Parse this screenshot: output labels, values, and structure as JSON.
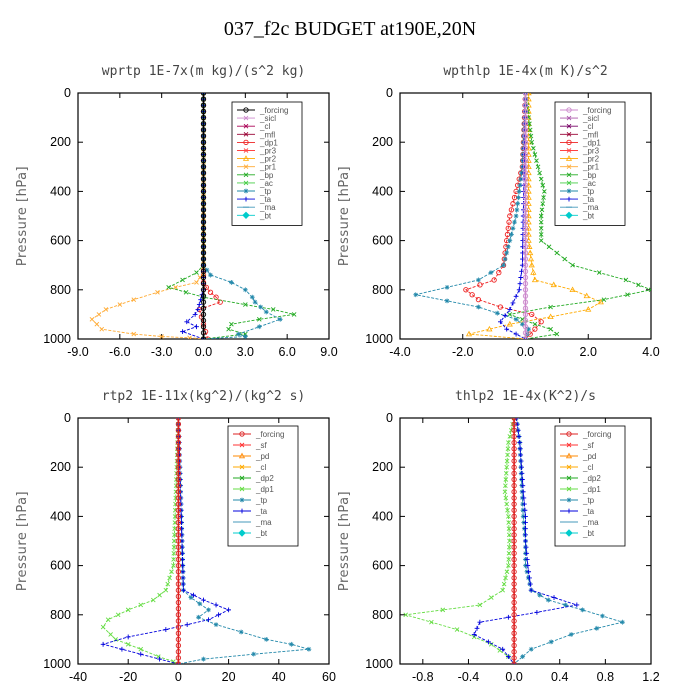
{
  "page_title": "037_f2c  BUDGET at190E,20N",
  "chart_data": [
    {
      "type": "line",
      "title": "wprtp  1E-7x(m kg)/(s^2 kg)",
      "ylabel": "Pressure [hPa]",
      "xlim": [
        -9,
        9
      ],
      "ylim": [
        0,
        1000
      ],
      "xticks": [
        "-9.0",
        "-6.0",
        "-3.0",
        "0.0",
        "3.0",
        "6.0",
        "9.0"
      ],
      "yticks": [
        "0",
        "200",
        "400",
        "600",
        "800",
        "1000"
      ],
      "series": [
        {
          "name": "_forcing",
          "color": "#000000",
          "marker": "circle",
          "x": [
            0,
            0,
            0,
            0,
            0,
            0,
            0,
            0,
            0,
            0,
            0
          ],
          "y": [
            0,
            100,
            200,
            300,
            400,
            500,
            600,
            700,
            800,
            900,
            1000
          ]
        },
        {
          "name": "_sicl",
          "color": "#cc88cc",
          "marker": "cross",
          "x": [],
          "y": []
        },
        {
          "name": "_cl",
          "color": "#aa0055",
          "marker": "cross",
          "x": [],
          "y": []
        },
        {
          "name": "_mfl",
          "color": "#990033",
          "marker": "cross",
          "x": [],
          "y": []
        },
        {
          "name": "_dp1",
          "color": "#ee2222",
          "marker": "circle",
          "x": [
            0,
            0,
            0,
            0,
            0.2,
            0.5,
            0.9,
            1.2,
            -0.3,
            0,
            0.3
          ],
          "y": [
            0,
            700,
            740,
            770,
            790,
            810,
            830,
            850,
            880,
            940,
            1000
          ]
        },
        {
          "name": "_pr3",
          "color": "#ff4444",
          "marker": "cross",
          "x": [],
          "y": []
        },
        {
          "name": "_pr2",
          "color": "#ffaa00",
          "marker": "triangle",
          "x": [],
          "y": []
        },
        {
          "name": "_pr1",
          "color": "#ffaa33",
          "marker": "cross",
          "x": [
            0,
            0,
            0,
            -0.5,
            -2,
            -3.3,
            -5,
            -7,
            -8,
            -7.3,
            -5,
            -3,
            -1,
            0
          ],
          "y": [
            0,
            660,
            730,
            770,
            790,
            810,
            840,
            880,
            920,
            960,
            980,
            990,
            995,
            1000
          ]
        },
        {
          "name": "_bp",
          "color": "#22aa22",
          "marker": "cross",
          "x": [
            0,
            0,
            -0.5,
            -1.5,
            -2.5,
            0,
            3,
            5,
            6.5,
            4,
            2,
            1.8,
            3,
            0
          ],
          "y": [
            0,
            700,
            730,
            760,
            790,
            830,
            860,
            880,
            900,
            920,
            940,
            960,
            980,
            1000
          ]
        },
        {
          "name": "_ac",
          "color": "#44cc44",
          "marker": "cross",
          "x": [],
          "y": []
        },
        {
          "name": "_tp",
          "color": "#2288aa",
          "marker": "star",
          "x": [
            0,
            0,
            0.5,
            2,
            3,
            3.5,
            3.7,
            4.5,
            5.5,
            4,
            2.5,
            3,
            0
          ],
          "y": [
            0,
            700,
            740,
            770,
            800,
            830,
            850,
            890,
            920,
            950,
            980,
            990,
            1000
          ]
        },
        {
          "name": "_ta",
          "color": "#0000dd",
          "marker": "plus",
          "x": [
            0,
            0,
            -0.2,
            -0.4,
            -0.6,
            -1.2,
            -0.5,
            -1.5,
            0
          ],
          "y": [
            0,
            800,
            840,
            880,
            900,
            930,
            950,
            970,
            1000
          ]
        },
        {
          "name": "_ma",
          "color": "#4499bb",
          "marker": "dash",
          "x": [],
          "y": []
        },
        {
          "name": "_bt",
          "color": "#00cccc",
          "marker": "diamond",
          "x": [],
          "y": []
        }
      ]
    },
    {
      "type": "line",
      "title": "wpthlp  1E-4x(m K)/s^2",
      "ylabel": "Pressure [hPa]",
      "xlim": [
        -4,
        4
      ],
      "ylim": [
        0,
        1000
      ],
      "xticks": [
        "-4.0",
        "-2.0",
        "0.0",
        "2.0",
        "4.0"
      ],
      "yticks": [
        "0",
        "200",
        "400",
        "600",
        "800",
        "1000"
      ],
      "series": [
        {
          "name": "_forcing",
          "color": "#cc88cc",
          "marker": "circle",
          "x": [
            0,
            0,
            0,
            0,
            0,
            0,
            0,
            0,
            0,
            0,
            0
          ],
          "y": [
            0,
            100,
            200,
            300,
            400,
            500,
            600,
            700,
            800,
            900,
            1000
          ]
        },
        {
          "name": "_sicl",
          "color": "#aa55aa",
          "marker": "cross",
          "x": [],
          "y": []
        },
        {
          "name": "_cl",
          "color": "#770066",
          "marker": "cross",
          "x": [],
          "y": []
        },
        {
          "name": "_mfl",
          "color": "#990033",
          "marker": "cross",
          "x": [],
          "y": []
        },
        {
          "name": "_dp1",
          "color": "#ee2222",
          "marker": "circle",
          "x": [
            0,
            -0.1,
            -0.3,
            -0.5,
            -0.6,
            -0.7,
            -1,
            -1.9,
            -1.5,
            -0.8,
            0.2,
            0.5,
            0.3,
            0
          ],
          "y": [
            0,
            300,
            400,
            500,
            600,
            700,
            760,
            800,
            840,
            870,
            900,
            930,
            960,
            1000
          ]
        },
        {
          "name": "_pr3",
          "color": "#ff4444",
          "marker": "cross",
          "x": [],
          "y": []
        },
        {
          "name": "_pr2",
          "color": "#ffaa00",
          "marker": "triangle",
          "x": [
            0.1,
            0.1,
            0.1,
            0.2,
            0.3,
            1.5,
            2.4,
            2,
            0.8,
            -0.5,
            -1.8,
            0
          ],
          "y": [
            0,
            300,
            600,
            700,
            760,
            800,
            850,
            880,
            910,
            940,
            980,
            1000
          ]
        },
        {
          "name": "_pr1",
          "color": "#ffaa33",
          "marker": "cross",
          "x": [],
          "y": []
        },
        {
          "name": "_bp",
          "color": "#22aa22",
          "marker": "cross",
          "x": [
            0,
            0.2,
            0.4,
            0.6,
            0.5,
            0.5,
            1.5,
            3.2,
            4,
            2.5,
            0.8,
            -0.5,
            0.3,
            0.8,
            1,
            0
          ],
          "y": [
            0,
            200,
            300,
            400,
            500,
            600,
            700,
            760,
            800,
            840,
            870,
            900,
            940,
            960,
            980,
            1000
          ]
        },
        {
          "name": "_ac",
          "color": "#44cc44",
          "marker": "cross",
          "x": [],
          "y": []
        },
        {
          "name": "_tp",
          "color": "#2288aa",
          "marker": "star",
          "x": [
            0,
            -0.1,
            -0.2,
            -0.3,
            -0.5,
            -0.7,
            -1.5,
            -3.5,
            -1.5,
            -0.3,
            0.1,
            0
          ],
          "y": [
            0,
            300,
            400,
            500,
            600,
            700,
            760,
            820,
            870,
            920,
            960,
            1000
          ]
        },
        {
          "name": "_ta",
          "color": "#0000dd",
          "marker": "plus",
          "x": [
            0,
            -0.1,
            -0.2,
            -0.5,
            -0.8,
            -0.6,
            0
          ],
          "y": [
            0,
            700,
            800,
            880,
            930,
            960,
            1000
          ]
        },
        {
          "name": "_ma",
          "color": "#4499bb",
          "marker": "dash",
          "x": [],
          "y": []
        },
        {
          "name": "_bt",
          "color": "#00cccc",
          "marker": "diamond",
          "x": [],
          "y": []
        }
      ]
    },
    {
      "type": "line",
      "title": "rtp2  1E-11x(kg^2)/(kg^2 s)",
      "ylabel": "Pressure [hPa]",
      "xlim": [
        -40,
        60
      ],
      "ylim": [
        0,
        1000
      ],
      "xticks": [
        "-40",
        "-20",
        "0",
        "20",
        "40",
        "60"
      ],
      "yticks": [
        "0",
        "200",
        "400",
        "600",
        "800",
        "1000"
      ],
      "series": [
        {
          "name": "_forcing",
          "color": "#dd2222",
          "marker": "circle",
          "x": [
            0,
            0,
            0,
            0,
            0,
            0,
            0,
            0,
            0,
            0,
            0
          ],
          "y": [
            0,
            100,
            200,
            300,
            400,
            500,
            600,
            700,
            800,
            900,
            1000
          ]
        },
        {
          "name": "_sf",
          "color": "#ff3333",
          "marker": "cross",
          "x": [],
          "y": []
        },
        {
          "name": "_pd",
          "color": "#ff8800",
          "marker": "triangle",
          "x": [],
          "y": []
        },
        {
          "name": "_cl",
          "color": "#ffaa00",
          "marker": "cross",
          "x": [],
          "y": []
        },
        {
          "name": "_dp2",
          "color": "#22aa22",
          "marker": "cross",
          "x": [],
          "y": []
        },
        {
          "name": "_dp1",
          "color": "#66dd44",
          "marker": "cross",
          "x": [
            0,
            -2,
            -5,
            -10,
            -20,
            -28,
            -30,
            -27,
            -25,
            -15,
            -8,
            -2,
            0
          ],
          "y": [
            0,
            600,
            700,
            740,
            780,
            820,
            850,
            880,
            900,
            940,
            970,
            990,
            1000
          ]
        },
        {
          "name": "_tp",
          "color": "#2288aa",
          "marker": "star",
          "x": [
            0,
            2,
            5,
            12,
            8,
            15,
            25,
            35,
            45,
            52,
            30,
            10,
            0
          ],
          "y": [
            0,
            700,
            730,
            780,
            810,
            840,
            870,
            900,
            920,
            940,
            960,
            980,
            1000
          ]
        },
        {
          "name": "_ta",
          "color": "#0000dd",
          "marker": "plus",
          "x": [
            0,
            2,
            10,
            20,
            12,
            -5,
            -20,
            -30,
            -15,
            0
          ],
          "y": [
            0,
            700,
            740,
            780,
            820,
            860,
            890,
            920,
            960,
            1000
          ]
        },
        {
          "name": "_ma",
          "color": "#4499bb",
          "marker": "dash",
          "x": [],
          "y": []
        },
        {
          "name": "_bt",
          "color": "#00cccc",
          "marker": "diamond",
          "x": [],
          "y": []
        }
      ]
    },
    {
      "type": "line",
      "title": "thlp2  1E-4x(K^2)/s",
      "ylabel": "Pressure [hPa]",
      "xlim": [
        -1.0,
        1.2
      ],
      "ylim": [
        0,
        1000
      ],
      "xticks": [
        "-0.8",
        "-0.4",
        "0.0",
        "0.4",
        "0.8",
        "1.2"
      ],
      "yticks": [
        "0",
        "200",
        "400",
        "600",
        "800",
        "1000"
      ],
      "series": [
        {
          "name": "_forcing",
          "color": "#dd2222",
          "marker": "circle",
          "x": [
            0,
            0,
            0,
            0,
            0,
            0,
            0,
            0,
            0,
            0,
            0
          ],
          "y": [
            0,
            100,
            200,
            300,
            400,
            500,
            600,
            700,
            800,
            900,
            1000
          ]
        },
        {
          "name": "_sf",
          "color": "#ff3333",
          "marker": "cross",
          "x": [],
          "y": []
        },
        {
          "name": "_pd",
          "color": "#ff8800",
          "marker": "triangle",
          "x": [],
          "y": []
        },
        {
          "name": "_cl",
          "color": "#ffaa00",
          "marker": "cross",
          "x": [],
          "y": []
        },
        {
          "name": "_dp2",
          "color": "#22aa22",
          "marker": "cross",
          "x": [],
          "y": []
        },
        {
          "name": "_dp1",
          "color": "#66dd44",
          "marker": "cross",
          "x": [
            0,
            -0.05,
            -0.08,
            -0.05,
            -0.04,
            -0.05,
            -0.1,
            -0.3,
            -0.95,
            -0.5,
            -0.2,
            -0.05,
            0
          ],
          "y": [
            0,
            100,
            300,
            400,
            500,
            600,
            700,
            760,
            800,
            860,
            920,
            970,
            1000
          ]
        },
        {
          "name": "_tp",
          "color": "#2288aa",
          "marker": "star",
          "x": [
            0.02,
            0.05,
            0.07,
            0.08,
            0.1,
            0.1,
            0.15,
            0.3,
            0.6,
            0.95,
            0.5,
            0.15,
            0
          ],
          "y": [
            0,
            100,
            300,
            400,
            500,
            600,
            700,
            740,
            780,
            830,
            880,
            940,
            1000
          ]
        },
        {
          "name": "_ta",
          "color": "#0000dd",
          "marker": "plus",
          "x": [
            0.02,
            0.05,
            0.08,
            0.1,
            0.1,
            0.12,
            0.15,
            0.55,
            0.2,
            -0.3,
            -0.35,
            -0.1,
            0
          ],
          "y": [
            0,
            100,
            300,
            400,
            500,
            600,
            700,
            760,
            790,
            830,
            880,
            940,
            1000
          ]
        },
        {
          "name": "_ma",
          "color": "#4499bb",
          "marker": "dash",
          "x": [],
          "y": []
        },
        {
          "name": "_bt",
          "color": "#00cccc",
          "marker": "diamond",
          "x": [],
          "y": []
        }
      ]
    }
  ]
}
